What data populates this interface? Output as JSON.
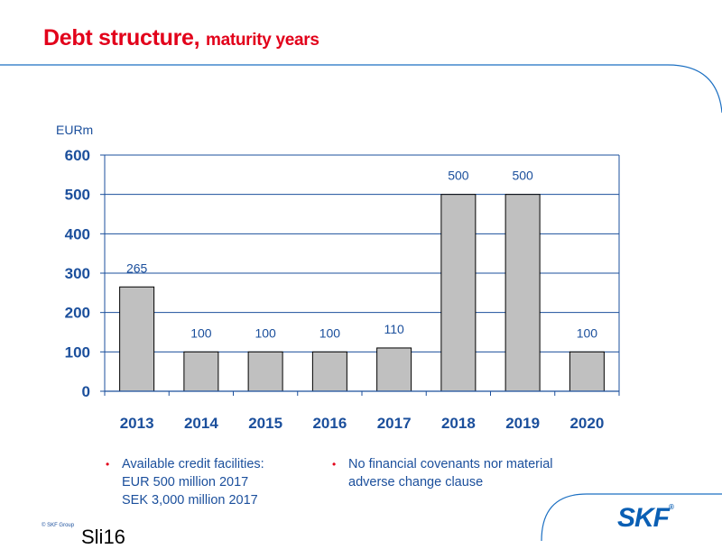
{
  "title": {
    "main": "Debt structure,",
    "sub": "maturity years"
  },
  "colors": {
    "title": "#e2001a",
    "axis_text": "#1b4f9c",
    "bar": "#c0c0c0",
    "gridline": "#1b4f9c",
    "bullet": "#e2001a"
  },
  "chart_data": {
    "type": "bar",
    "ylabel": "EURm",
    "ylim": [
      0,
      600
    ],
    "yticks": [
      0,
      100,
      200,
      300,
      400,
      500,
      600
    ],
    "categories": [
      "2013",
      "2014",
      "2015",
      "2016",
      "2017",
      "2018",
      "2019",
      "2020"
    ],
    "values": [
      265,
      100,
      100,
      100,
      110,
      500,
      500,
      100
    ],
    "data_labels": [
      "265",
      "100",
      "100",
      "100",
      "110",
      "500",
      "500",
      "100"
    ],
    "grid": true
  },
  "bullets": {
    "left": {
      "line1": "Available credit facilities:",
      "line2": "EUR 500 million 2017",
      "line3": "SEK 3,000 million 2017"
    },
    "right": {
      "line1": "No financial covenants nor material",
      "line2": "adverse change clause"
    }
  },
  "footer": {
    "copyright": "© SKF Group",
    "slide": "Sli16",
    "logo": "SKF",
    "logo_mark": "®"
  }
}
